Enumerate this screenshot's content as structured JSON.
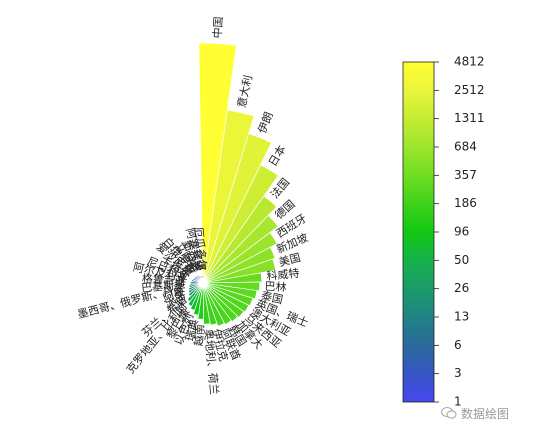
{
  "chart_data": {
    "type": "polar-bar",
    "title": "",
    "categories": [
      "中国",
      "意大利",
      "伊朗",
      "日本",
      "法国",
      "德国",
      "西班牙",
      "新加坡",
      "美国",
      "科威特",
      "巴林",
      "泰国",
      "英国、瑞士",
      "澳大利亚",
      "马来西亚",
      "加拿大",
      "韩国",
      "阿联酋",
      "伊拉克",
      "奥地利、荷兰",
      "越南",
      "瑞典",
      "以色列",
      "黎巴嫩",
      "克罗地亚、比利时",
      "芬兰、希腊",
      "冰岛",
      "阿曼",
      "墨西哥、俄罗斯、丹麦",
      "巴基斯坦",
      "格鲁吉亚",
      "阿尔及利亚",
      "尼日利亚",
      "卡塔尔",
      "爱沙尼亚",
      "白俄罗斯",
      "立陶宛",
      "新西兰",
      "阿塞拜疆",
      "厄瓜多尔"
    ],
    "values": [
      4812,
      2512,
      2000,
      1400,
      900,
      700,
      550,
      450,
      420,
      260,
      240,
      220,
      200,
      190,
      180,
      170,
      160,
      150,
      130,
      120,
      90,
      70,
      52,
      42,
      30,
      18,
      14,
      11,
      9,
      7,
      6,
      5,
      4,
      3,
      3,
      2,
      2,
      1,
      1,
      1
    ],
    "colorbar": {
      "ticks": [
        "4812",
        "2512",
        "1311",
        "684",
        "357",
        "186",
        "96",
        "50",
        "26",
        "13",
        "6",
        "3",
        "1"
      ],
      "colors": [
        "#FFFF33",
        "#EAF53A",
        "#C5EC33",
        "#9DE52C",
        "#6FDD22",
        "#3FD31B",
        "#12C812",
        "#15B24A",
        "#1C9B6A",
        "#1F8484",
        "#2A6A9B",
        "#3755C5",
        "#4747EE"
      ],
      "scale": "log"
    }
  },
  "watermark": {
    "icon": "wechat-icon",
    "text": "数据绘图"
  }
}
